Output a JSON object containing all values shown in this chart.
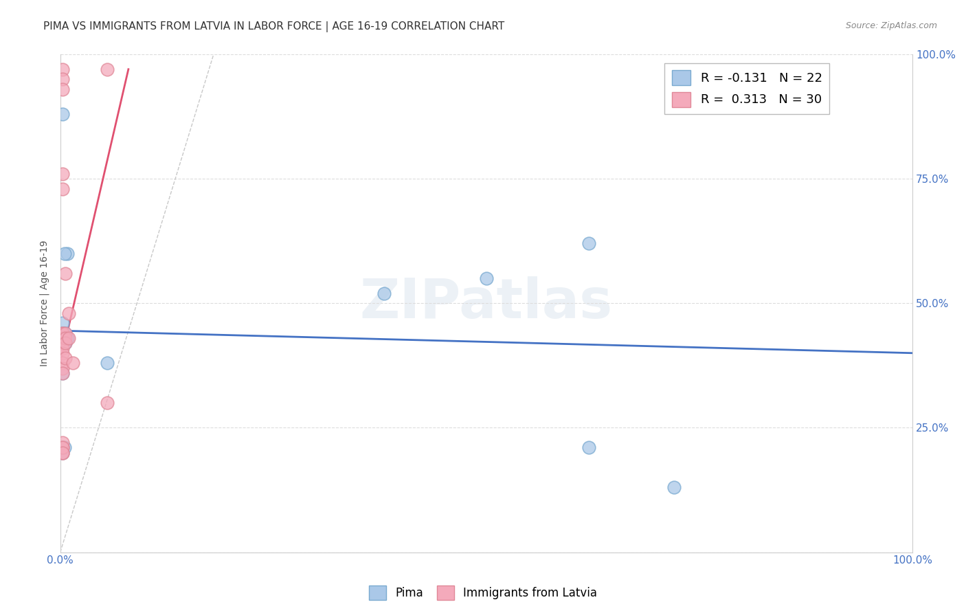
{
  "title": "PIMA VS IMMIGRANTS FROM LATVIA IN LABOR FORCE | AGE 16-19 CORRELATION CHART",
  "source": "Source: ZipAtlas.com",
  "ylabel": "In Labor Force | Age 16-19",
  "watermark": "ZIPatlas",
  "xlim": [
    0.0,
    1.0
  ],
  "ylim": [
    0.0,
    1.0
  ],
  "xticks": [
    0.0,
    0.25,
    0.5,
    0.75,
    1.0
  ],
  "yticks": [
    0.0,
    0.25,
    0.5,
    0.75,
    1.0
  ],
  "xtick_labels": [
    "0.0%",
    "",
    "",
    "",
    "100.0%"
  ],
  "ytick_labels": [
    "",
    "25.0%",
    "50.0%",
    "75.0%",
    "100.0%"
  ],
  "blue_scatter": {
    "x": [
      0.008,
      0.003,
      0.003,
      0.005,
      0.005,
      0.006,
      0.008,
      0.006,
      0.005,
      0.003,
      0.003,
      0.005,
      0.003,
      0.055,
      0.38,
      0.5,
      0.62,
      0.003,
      0.003,
      0.005,
      0.62,
      0.72
    ],
    "y": [
      0.6,
      0.44,
      0.46,
      0.44,
      0.43,
      0.44,
      0.43,
      0.42,
      0.6,
      0.88,
      0.44,
      0.42,
      0.36,
      0.38,
      0.52,
      0.55,
      0.62,
      0.21,
      0.2,
      0.21,
      0.21,
      0.13
    ],
    "color": "#aac8e8",
    "edge_color": "#7aaad0",
    "R": -0.131,
    "N": 22
  },
  "pink_scatter": {
    "x": [
      0.003,
      0.003,
      0.003,
      0.003,
      0.003,
      0.003,
      0.003,
      0.003,
      0.003,
      0.003,
      0.003,
      0.003,
      0.003,
      0.003,
      0.003,
      0.006,
      0.006,
      0.006,
      0.006,
      0.006,
      0.01,
      0.01,
      0.015,
      0.055,
      0.055,
      0.003,
      0.003,
      0.003,
      0.003,
      0.003
    ],
    "y": [
      0.97,
      0.95,
      0.93,
      0.44,
      0.43,
      0.44,
      0.43,
      0.42,
      0.41,
      0.4,
      0.38,
      0.37,
      0.36,
      0.21,
      0.2,
      0.56,
      0.44,
      0.43,
      0.42,
      0.39,
      0.48,
      0.43,
      0.38,
      0.97,
      0.3,
      0.76,
      0.73,
      0.22,
      0.21,
      0.2
    ],
    "color": "#f4aabb",
    "edge_color": "#e08898",
    "R": 0.313,
    "N": 30
  },
  "blue_line": {
    "x": [
      0.0,
      1.0
    ],
    "y": [
      0.445,
      0.4
    ],
    "color": "#4472c4"
  },
  "pink_line": {
    "x": [
      0.0,
      0.08
    ],
    "y": [
      0.38,
      0.97
    ],
    "color": "#e05070"
  },
  "diagonal_line": {
    "x": [
      0.0,
      0.18
    ],
    "y": [
      0.0,
      1.0
    ],
    "color": "#c8c8c8",
    "style": "--"
  },
  "legend_blue_label": "R = -0.131   N = 22",
  "legend_pink_label": "R =  0.313   N = 30",
  "footer_blue": "Pima",
  "footer_pink": "Immigrants from Latvia",
  "grid_color": "#dddddd",
  "background_color": "#ffffff",
  "title_fontsize": 11,
  "axis_label_fontsize": 10,
  "tick_fontsize": 11
}
